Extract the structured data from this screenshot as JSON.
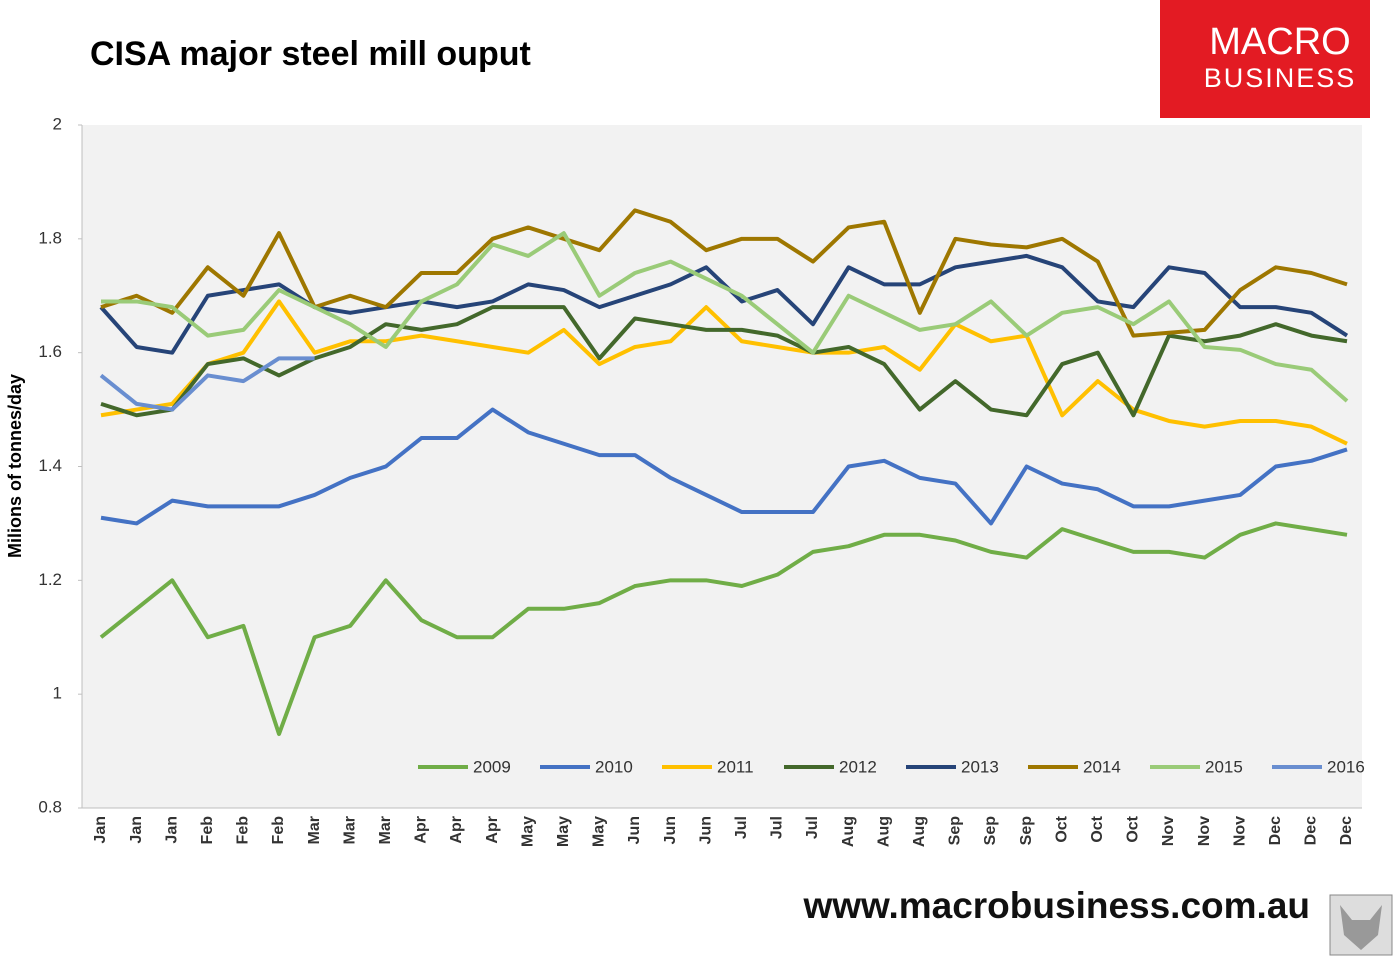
{
  "chart_data": {
    "type": "line",
    "title": "CISA major steel mill ouput",
    "y_label": "Milions of tonnes/day",
    "categories": [
      "Jan",
      "Jan",
      "Jan",
      "Feb",
      "Feb",
      "Feb",
      "Mar",
      "Mar",
      "Mar",
      "Apr",
      "Apr",
      "Apr",
      "May",
      "May",
      "May",
      "Jun",
      "Jun",
      "Jun",
      "Jul",
      "Jul",
      "Jul",
      "Aug",
      "Aug",
      "Aug",
      "Sep",
      "Sep",
      "Sep",
      "Oct",
      "Oct",
      "Oct",
      "Nov",
      "Nov",
      "Nov",
      "Dec",
      "Dec",
      "Dec"
    ],
    "series": [
      {
        "name": "2009",
        "color": "#70ad47",
        "values": [
          1.1,
          1.15,
          1.2,
          1.1,
          1.12,
          0.93,
          1.1,
          1.12,
          1.2,
          1.13,
          1.1,
          1.1,
          1.15,
          1.15,
          1.16,
          1.19,
          1.2,
          1.2,
          1.19,
          1.21,
          1.25,
          1.26,
          1.28,
          1.28,
          1.27,
          1.25,
          1.24,
          1.29,
          1.27,
          1.25,
          1.25,
          1.24,
          1.28,
          1.3,
          1.29,
          1.28
        ]
      },
      {
        "name": "2010",
        "color": "#4472c4",
        "values": [
          1.31,
          1.3,
          1.34,
          1.33,
          1.33,
          1.33,
          1.35,
          1.38,
          1.4,
          1.45,
          1.45,
          1.5,
          1.46,
          1.44,
          1.42,
          1.42,
          1.38,
          1.35,
          1.32,
          1.32,
          1.32,
          1.4,
          1.41,
          1.38,
          1.37,
          1.3,
          1.4,
          1.37,
          1.36,
          1.33,
          1.33,
          1.34,
          1.35,
          1.4,
          1.41,
          1.43
        ]
      },
      {
        "name": "2011",
        "color": "#ffc000",
        "values": [
          1.49,
          1.5,
          1.51,
          1.58,
          1.6,
          1.69,
          1.6,
          1.62,
          1.62,
          1.63,
          1.62,
          1.61,
          1.6,
          1.64,
          1.58,
          1.61,
          1.62,
          1.68,
          1.62,
          1.61,
          1.6,
          1.6,
          1.61,
          1.57,
          1.65,
          1.62,
          1.63,
          1.49,
          1.55,
          1.5,
          1.48,
          1.47,
          1.48,
          1.48,
          1.47,
          1.44
        ]
      },
      {
        "name": "2012",
        "color": "#43682b",
        "values": [
          1.51,
          1.49,
          1.5,
          1.58,
          1.59,
          1.56,
          1.59,
          1.61,
          1.65,
          1.64,
          1.65,
          1.68,
          1.68,
          1.68,
          1.59,
          1.66,
          1.65,
          1.64,
          1.64,
          1.63,
          1.6,
          1.61,
          1.58,
          1.5,
          1.55,
          1.5,
          1.49,
          1.58,
          1.6,
          1.49,
          1.63,
          1.62,
          1.63,
          1.65,
          1.63,
          1.62
        ]
      },
      {
        "name": "2013",
        "color": "#264478",
        "values": [
          1.68,
          1.61,
          1.6,
          1.7,
          1.71,
          1.72,
          1.68,
          1.67,
          1.68,
          1.69,
          1.68,
          1.69,
          1.72,
          1.71,
          1.68,
          1.7,
          1.72,
          1.75,
          1.69,
          1.71,
          1.65,
          1.75,
          1.72,
          1.72,
          1.75,
          1.76,
          1.77,
          1.75,
          1.69,
          1.68,
          1.75,
          1.74,
          1.68,
          1.68,
          1.67,
          1.63
        ]
      },
      {
        "name": "2014",
        "color": "#9e7700",
        "values": [
          1.68,
          1.7,
          1.67,
          1.75,
          1.7,
          1.81,
          1.68,
          1.7,
          1.68,
          1.74,
          1.74,
          1.8,
          1.82,
          1.8,
          1.78,
          1.85,
          1.83,
          1.78,
          1.8,
          1.8,
          1.76,
          1.82,
          1.83,
          1.67,
          1.8,
          1.79,
          1.785,
          1.8,
          1.76,
          1.63,
          1.635,
          1.64,
          1.71,
          1.75,
          1.74,
          1.72
        ]
      },
      {
        "name": "2015",
        "color": "#9acb78",
        "values": [
          1.69,
          1.69,
          1.68,
          1.63,
          1.64,
          1.71,
          1.68,
          1.65,
          1.61,
          1.69,
          1.72,
          1.79,
          1.77,
          1.81,
          1.7,
          1.74,
          1.76,
          1.73,
          1.7,
          1.65,
          1.6,
          1.7,
          1.67,
          1.64,
          1.65,
          1.69,
          1.63,
          1.67,
          1.68,
          1.65,
          1.69,
          1.61,
          1.605,
          1.58,
          1.57,
          1.515
        ]
      },
      {
        "name": "2016",
        "color": "#698ed0",
        "values": [
          1.56,
          1.51,
          1.5,
          1.56,
          1.55,
          1.59,
          1.59,
          null,
          null,
          null,
          null,
          null,
          null,
          null,
          null,
          null,
          null,
          null,
          null,
          null,
          null,
          null,
          null,
          null,
          null,
          null,
          null,
          null,
          null,
          null,
          null,
          null,
          null,
          null,
          null,
          null
        ]
      }
    ],
    "ylim": [
      0.8,
      2
    ],
    "yticks": [
      0.8,
      1,
      1.2,
      1.4,
      1.6,
      1.8,
      2
    ],
    "grid": false,
    "legend": "bottom"
  },
  "logo": {
    "line1": "MACRO",
    "line2": "BUSINESS"
  },
  "footer": "www.macrobusiness.com.au"
}
